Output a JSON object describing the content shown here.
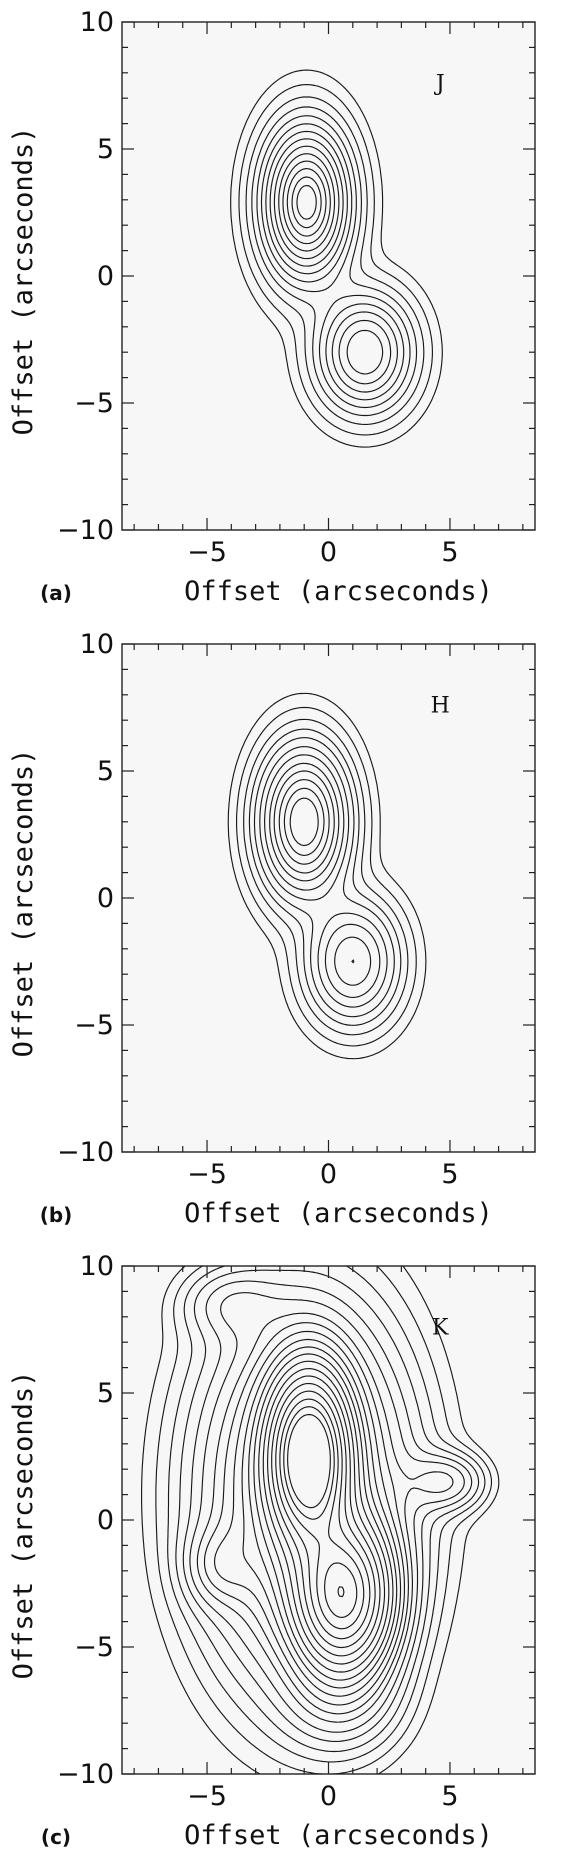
{
  "chart_data": [
    {
      "type": "contour",
      "panel_label": "(a)",
      "band_label": "J",
      "xlabel": "Offset (arcseconds)",
      "ylabel": "Offset (arcseconds)",
      "xlim": [
        -8.5,
        8.5
      ],
      "ylim": [
        -10,
        10
      ],
      "xticks": [
        -5,
        0,
        5
      ],
      "yticks": [
        -10,
        -5,
        0,
        5,
        10
      ],
      "grid": false,
      "sources": [
        {
          "x": -0.9,
          "y": 2.9,
          "peak": 1.0,
          "sx": 1.05,
          "sy": 1.75
        },
        {
          "x": 1.5,
          "y": -3.0,
          "peak": 0.55,
          "sx": 1.15,
          "sy": 1.35
        }
      ],
      "levels": [
        0.012,
        0.03,
        0.06,
        0.1,
        0.15,
        0.21,
        0.28,
        0.36,
        0.45,
        0.55,
        0.65,
        0.75,
        0.85,
        0.93
      ]
    },
    {
      "type": "contour",
      "panel_label": "(b)",
      "band_label": "H",
      "xlabel": "Offset (arcseconds)",
      "ylabel": "Offset (arcseconds)",
      "xlim": [
        -8.5,
        8.5
      ],
      "ylim": [
        -10,
        10
      ],
      "xticks": [
        -5,
        0,
        5
      ],
      "yticks": [
        -10,
        -5,
        0,
        5,
        10
      ],
      "grid": false,
      "sources": [
        {
          "x": -1.0,
          "y": 3.0,
          "peak": 1.0,
          "sx": 1.05,
          "sy": 1.7
        },
        {
          "x": 1.0,
          "y": -2.5,
          "peak": 0.5,
          "sx": 1.1,
          "sy": 1.4
        }
      ],
      "levels": [
        0.012,
        0.03,
        0.06,
        0.1,
        0.15,
        0.22,
        0.3,
        0.4,
        0.5,
        0.62,
        0.74,
        0.86
      ]
    },
    {
      "type": "contour",
      "panel_label": "(c)",
      "band_label": "K",
      "xlabel": "Offset (arcseconds)",
      "ylabel": "Offset (arcseconds)",
      "xlim": [
        -8.5,
        8.5
      ],
      "ylim": [
        -10,
        10
      ],
      "xticks": [
        -5,
        0,
        5
      ],
      "yticks": [
        -10,
        -5,
        0,
        5,
        10
      ],
      "grid": false,
      "sources": [
        {
          "x": -0.8,
          "y": 2.5,
          "peak": 1.0,
          "sx": 1.0,
          "sy": 2.0
        },
        {
          "x": 0.6,
          "y": -3.0,
          "peak": 0.75,
          "sx": 1.2,
          "sy": 1.8
        },
        {
          "x": -1.0,
          "y": 1.0,
          "peak": 0.22,
          "sx": 2.6,
          "sy": 4.4
        },
        {
          "x": 4.8,
          "y": 1.5,
          "peak": 0.07,
          "sx": 1.0,
          "sy": 0.7
        },
        {
          "x": -4.5,
          "y": -1.8,
          "peak": 0.06,
          "sx": 0.9,
          "sy": 1.0
        },
        {
          "x": -4.0,
          "y": 8.5,
          "peak": 0.04,
          "sx": 1.3,
          "sy": 0.9
        },
        {
          "x": 0.5,
          "y": -7.0,
          "peak": 0.05,
          "sx": 1.5,
          "sy": 1.4
        }
      ],
      "levels": [
        0.008,
        0.014,
        0.022,
        0.032,
        0.045,
        0.06,
        0.08,
        0.1,
        0.125,
        0.155,
        0.19,
        0.23,
        0.28,
        0.34,
        0.41,
        0.49,
        0.58,
        0.68,
        0.78,
        0.88
      ]
    }
  ]
}
